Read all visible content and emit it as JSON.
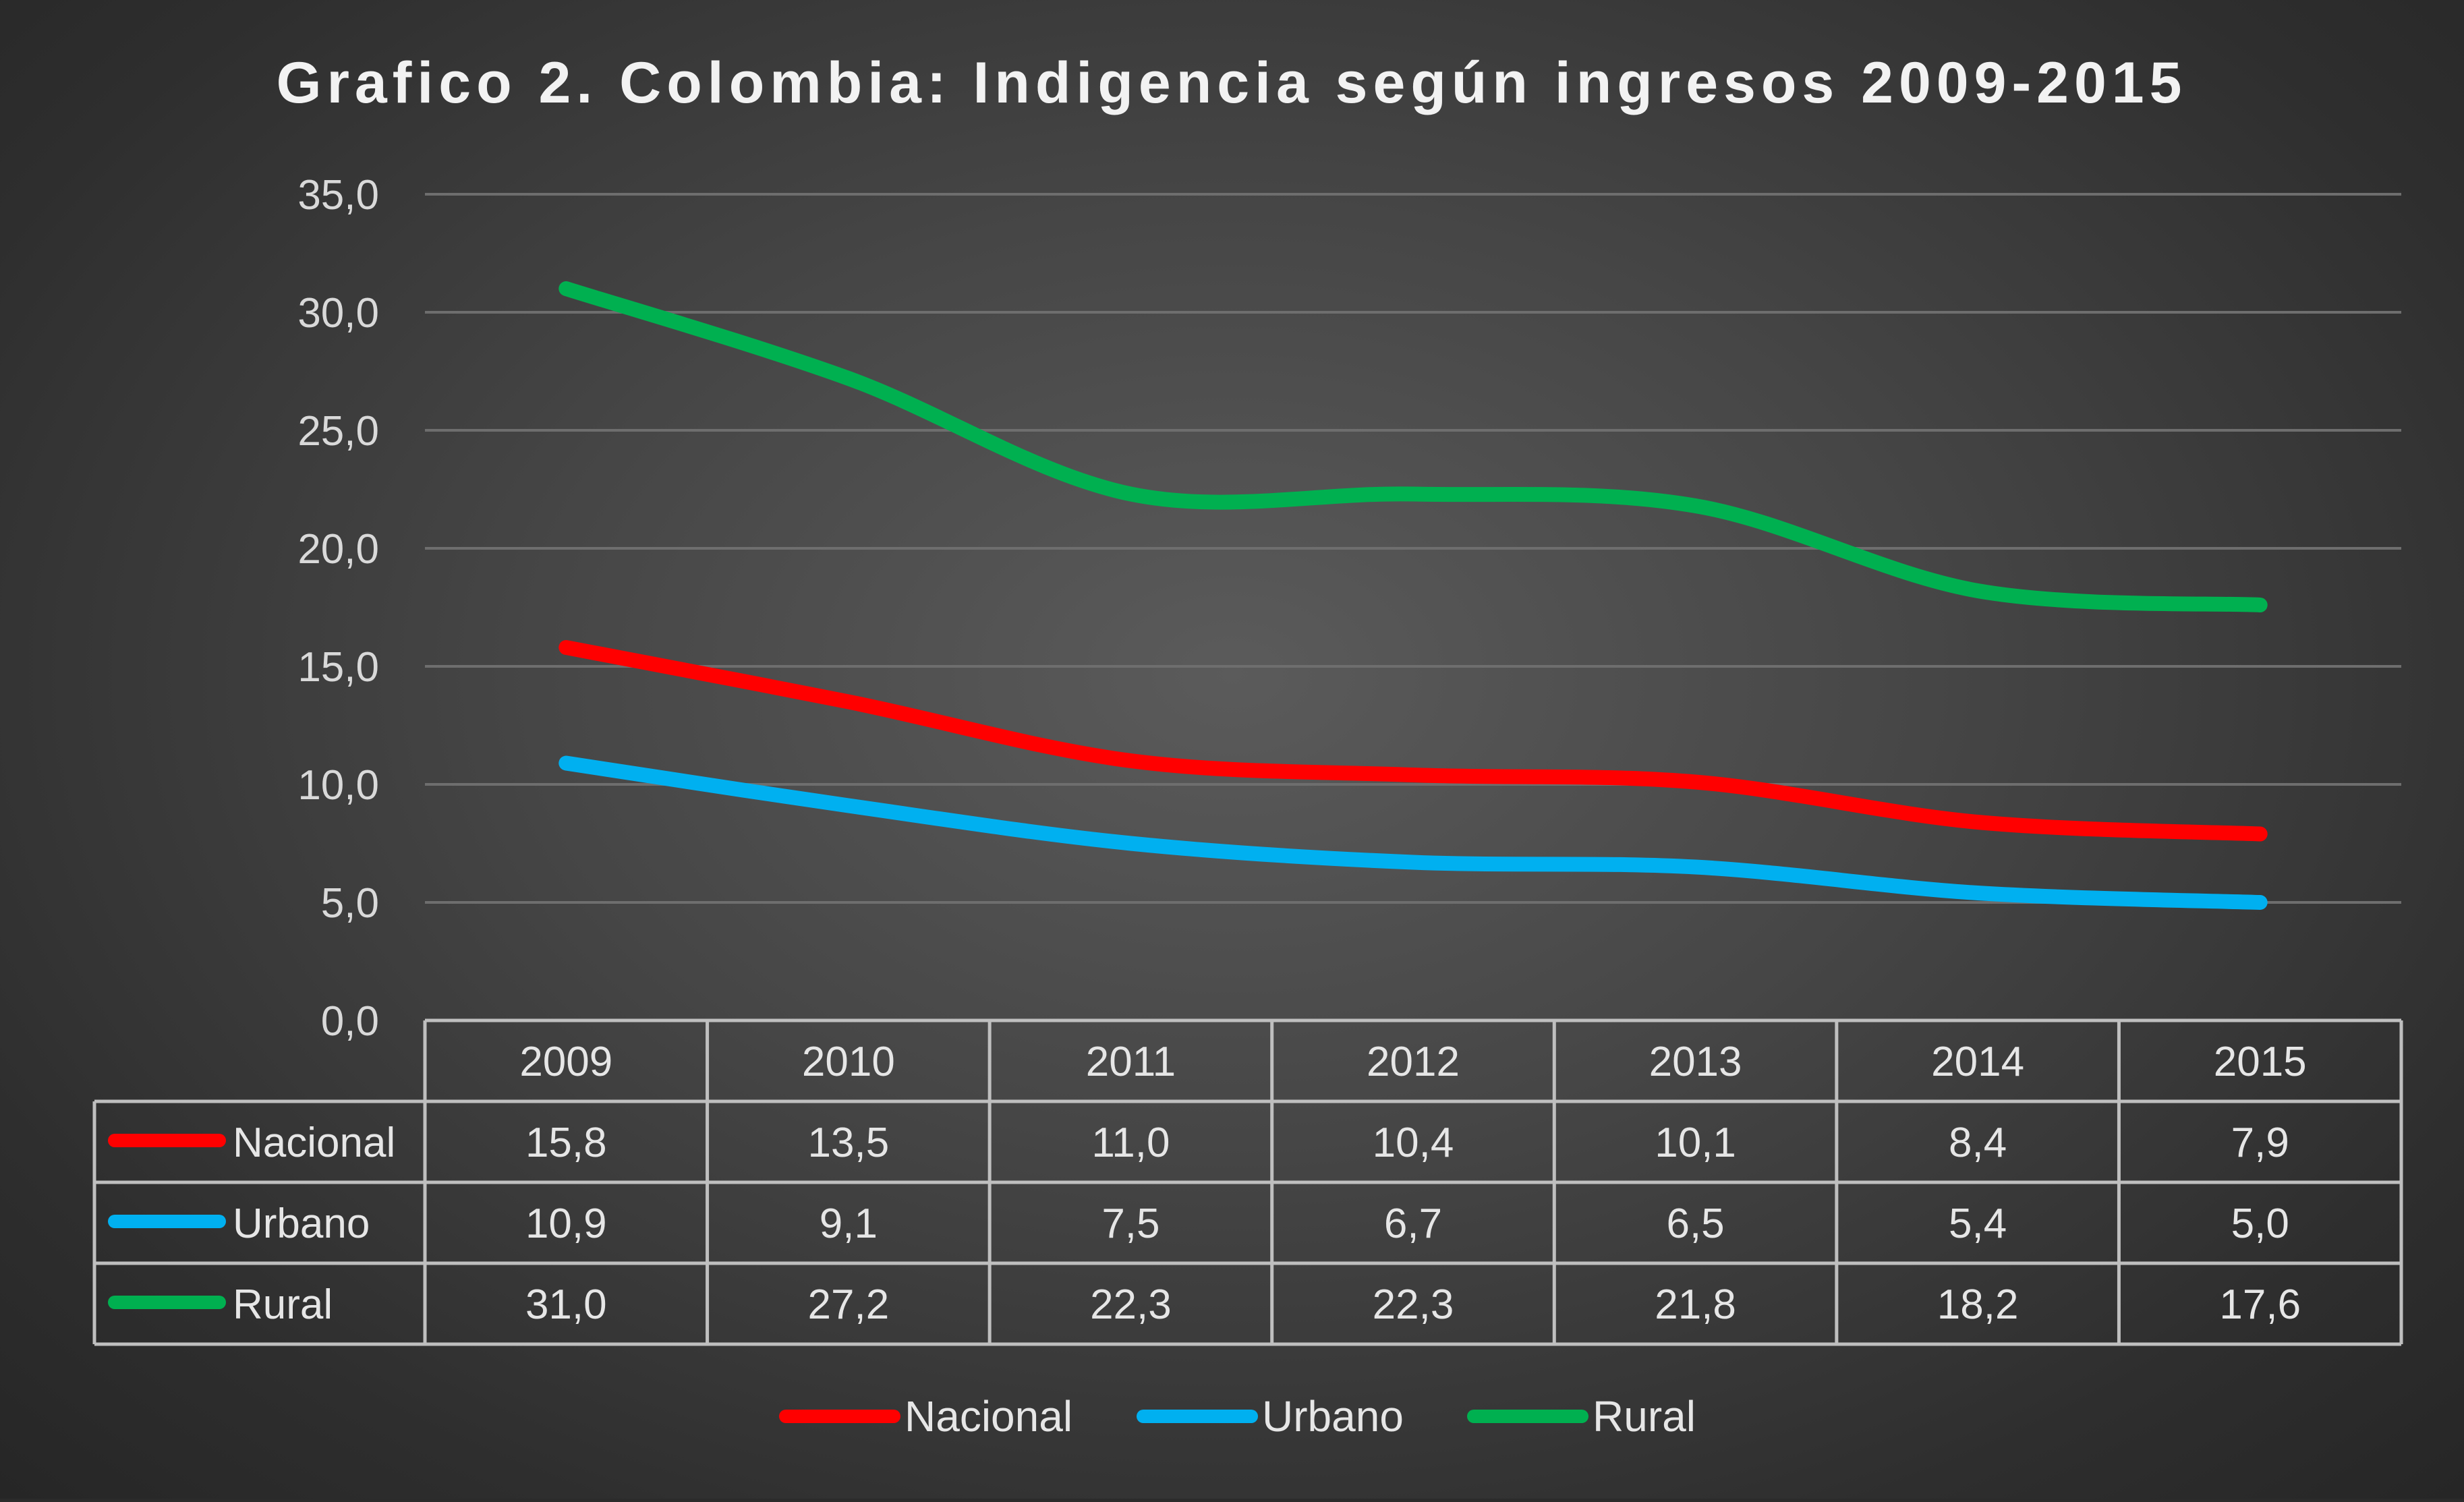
{
  "chart_data": {
    "type": "line",
    "title": "Grafico 2. Colombia: Indigencia según ingresos 2009-2015",
    "categories": [
      "2009",
      "2010",
      "2011",
      "2012",
      "2013",
      "2014",
      "2015"
    ],
    "ylim": [
      0,
      35
    ],
    "yticks": [
      "0,0",
      "5,0",
      "10,0",
      "15,0",
      "20,0",
      "25,0",
      "30,0",
      "35,0"
    ],
    "grid": true,
    "legend_position": "bottom",
    "series": [
      {
        "name": "Nacional",
        "color": "#ff0000",
        "values": [
          15.8,
          13.5,
          11.0,
          10.4,
          10.1,
          8.4,
          7.9
        ],
        "labels": [
          "15,8",
          "13,5",
          "11,0",
          "10,4",
          "10,1",
          "8,4",
          "7,9"
        ]
      },
      {
        "name": "Urbano",
        "color": "#00b0f0",
        "values": [
          10.9,
          9.1,
          7.5,
          6.7,
          6.5,
          5.4,
          5.0
        ],
        "labels": [
          "10,9",
          "9,1",
          "7,5",
          "6,7",
          "6,5",
          "5,4",
          "5,0"
        ]
      },
      {
        "name": "Rural",
        "color": "#00b050",
        "values": [
          31.0,
          27.2,
          22.3,
          22.3,
          21.8,
          18.2,
          17.6
        ],
        "labels": [
          "31,0",
          "27,2",
          "22,3",
          "22,3",
          "21,8",
          "18,2",
          "17,6"
        ]
      }
    ]
  }
}
